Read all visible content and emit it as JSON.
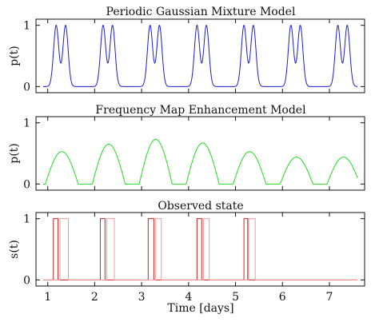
{
  "chart_data": [
    {
      "type": "line",
      "title": "Periodic Gaussian Mixture Model",
      "xlabel": "",
      "ylabel": "p(t)",
      "xlim": [
        0.75,
        7.75
      ],
      "ylim": [
        -0.1,
        1.1
      ],
      "yticks": [
        "0",
        "1"
      ],
      "color": "#1c1cd6",
      "series": [
        {
          "model": "gaussian_mixture",
          "peak_value": 1.0,
          "peak_pairs": [
            [
              1.18,
              1.38
            ],
            [
              2.18,
              2.38
            ],
            [
              3.18,
              3.38
            ],
            [
              4.18,
              4.38
            ],
            [
              5.18,
              5.38
            ],
            [
              6.18,
              6.38
            ],
            [
              7.18,
              7.38
            ]
          ],
          "sigma_days": 0.055
        }
      ]
    },
    {
      "type": "line",
      "title": "Frequency Map Enhancement Model",
      "xlabel": "",
      "ylabel": "p(t)",
      "xlim": [
        0.75,
        7.75
      ],
      "ylim": [
        -0.1,
        1.1
      ],
      "yticks": [
        "0",
        "1"
      ],
      "color": "#22dd22",
      "series": [
        {
          "model": "daily_humps",
          "centers": [
            1.3,
            2.3,
            3.3,
            4.3,
            5.3,
            6.3,
            7.3
          ],
          "amplitudes": [
            0.53,
            0.65,
            0.73,
            0.67,
            0.53,
            0.44,
            0.44
          ],
          "half_width_days": 0.35
        }
      ]
    },
    {
      "type": "line",
      "title": "Observed state",
      "xlabel": "Time [days]",
      "ylabel": "s(t)",
      "xlim": [
        0.75,
        7.75
      ],
      "ylim": [
        -0.1,
        1.1
      ],
      "yticks": [
        "0",
        "1"
      ],
      "xticks": [
        1,
        2,
        3,
        4,
        5,
        6,
        7
      ],
      "colors": {
        "primary": "#cc2222",
        "secondary": "#f29a9a"
      },
      "series": [
        {
          "name": "",
          "intervals_on": [
            [
              1.12,
              1.22
            ],
            [
              2.12,
              2.22
            ],
            [
              3.14,
              3.26
            ],
            [
              4.18,
              4.28
            ],
            [
              5.18,
              5.26
            ]
          ],
          "color_key": "primary"
        },
        {
          "name": "",
          "intervals_on": [
            [
              1.26,
              1.44
            ],
            [
              2.26,
              2.42
            ],
            [
              3.3,
              3.42
            ],
            [
              4.32,
              4.44
            ],
            [
              5.28,
              5.42
            ]
          ],
          "color_key": "secondary"
        }
      ]
    }
  ]
}
